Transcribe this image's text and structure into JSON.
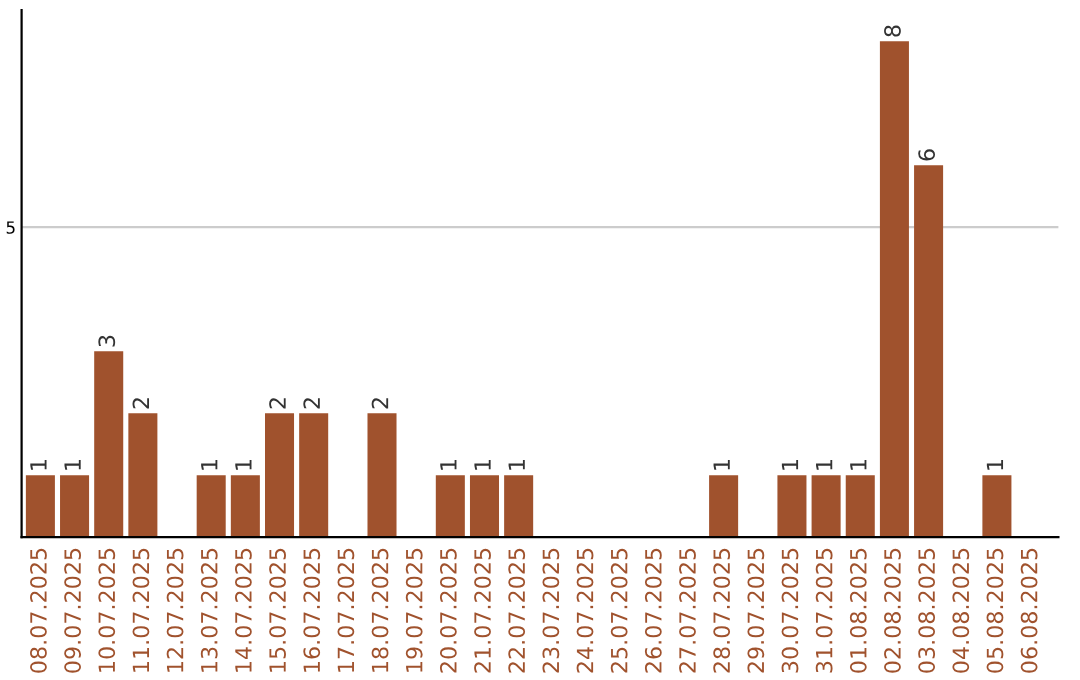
{
  "chart_data": {
    "type": "bar",
    "categories": [
      "08.07.2025",
      "09.07.2025",
      "10.07.2025",
      "11.07.2025",
      "12.07.2025",
      "13.07.2025",
      "14.07.2025",
      "15.07.2025",
      "16.07.2025",
      "17.07.2025",
      "18.07.2025",
      "19.07.2025",
      "20.07.2025",
      "21.07.2025",
      "22.07.2025",
      "23.07.2025",
      "24.07.2025",
      "25.07.2025",
      "26.07.2025",
      "27.07.2025",
      "28.07.2025",
      "29.07.2025",
      "30.07.2025",
      "31.07.2025",
      "01.08.2025",
      "02.08.2025",
      "03.08.2025",
      "04.08.2025",
      "05.08.2025",
      "06.08.2025"
    ],
    "values": [
      1,
      1,
      3,
      2,
      0,
      1,
      1,
      2,
      2,
      0,
      2,
      0,
      1,
      1,
      1,
      0,
      0,
      0,
      0,
      0,
      1,
      0,
      1,
      1,
      1,
      8,
      6,
      0,
      1,
      0
    ],
    "value_labels": [
      "1",
      "1",
      "3",
      "2",
      null,
      "1",
      "1",
      "2",
      "2",
      null,
      "2",
      null,
      "1",
      "1",
      "1",
      null,
      null,
      null,
      null,
      null,
      "1",
      null,
      "1",
      "1",
      "1",
      "8",
      "6",
      null,
      "1",
      null
    ],
    "color": "#a0522d",
    "ylim": [
      0,
      8.5
    ],
    "yticks": [
      5
    ],
    "grid": "y",
    "legend": false
  }
}
